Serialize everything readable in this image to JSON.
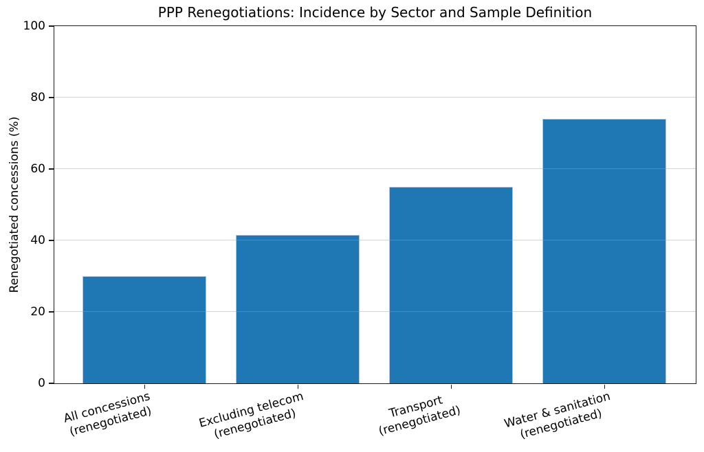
{
  "chart_data": {
    "type": "bar",
    "title": "PPP Renegotiations: Incidence by Sector and Sample Definition",
    "xlabel": "",
    "ylabel": "Renegotiated concessions (%)",
    "categories": [
      "All concessions\n(renegotiated)",
      "Excluding telecom\n(renegotiated)",
      "Transport\n(renegotiated)",
      "Water & sanitation\n(renegotiated)"
    ],
    "values": [
      30,
      41.5,
      55,
      74
    ],
    "ylim": [
      0,
      100
    ],
    "yticks": [
      0,
      20,
      40,
      60,
      80,
      100
    ],
    "grid": true,
    "grid_over_bars": true,
    "legend": null,
    "x_tick_label_rotation_deg": 15,
    "colors": {
      "bar_fill": "#1f77b4",
      "bar_edge": "#b0c4de",
      "gridline": "#a0a0a0",
      "axis_spine": "#1a1a1a",
      "text": "#000000",
      "background": "#ffffff"
    }
  }
}
